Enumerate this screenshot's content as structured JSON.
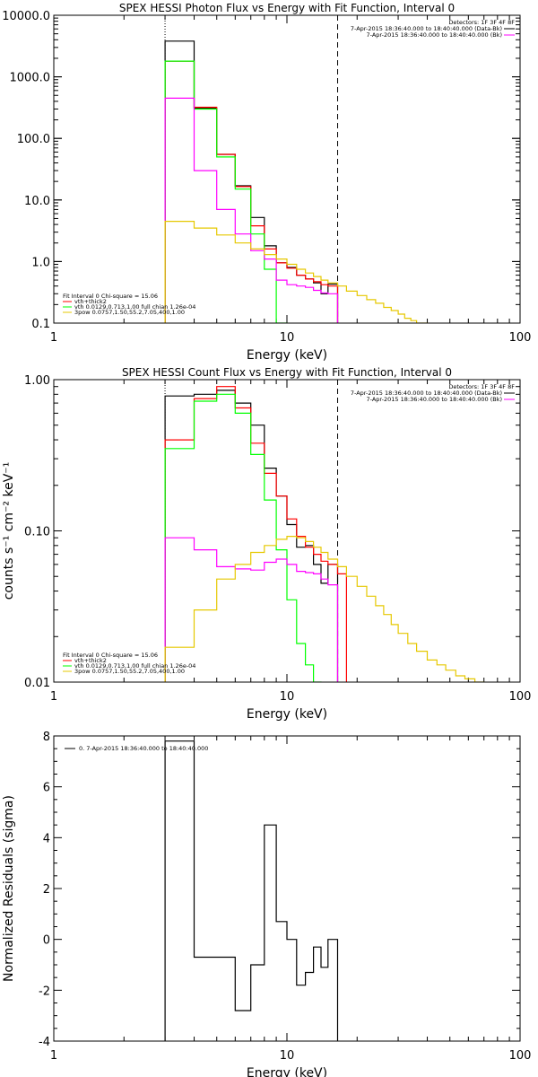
{
  "chart_data": [
    {
      "type": "line",
      "title": "SPEX HESSI Photon Flux vs Energy with Fit Function, Interval 0",
      "xlabel": "Energy (keV)",
      "ylabel": "",
      "xscale": "log",
      "yscale": "log",
      "xlim": [
        1,
        100
      ],
      "ylim": [
        0.1,
        10000
      ],
      "x_ticks": [
        "1",
        "10",
        "100"
      ],
      "y_ticks": [
        "0.1",
        "1.0",
        "10.0",
        "100.0",
        "1000.0",
        "10000.0"
      ],
      "vlines": [
        {
          "x": 3.0,
          "style": "dotted"
        },
        {
          "x": 16.5,
          "style": "dashed"
        }
      ],
      "header": {
        "detectors": "Detectors: 1F 3F 4F 8F",
        "line1": "7-Apr-2015 18:36:40.000 to 18:40:40.000 (Data-Bk)",
        "line2": "7-Apr-2015 18:36:40.000 to 18:40:40.000 (Bk)"
      },
      "fit_info": {
        "line1": "Fit Interval 0   Chi-square = 15.06",
        "line2": "vth+thick2",
        "line3": "vth 0.0129,0.713,1.00  full chian 1.26e-04",
        "line4": "3pow 0.0757,1.50,55.2,7.05,400,1.00"
      },
      "series": [
        {
          "name": "Data-Bk",
          "color": "#000000",
          "edges": [
            3.0,
            4.0,
            5.0,
            6.0,
            7.0,
            8.0,
            9.0,
            10.0,
            11.0,
            12.0,
            13.0,
            14.0,
            15.0,
            16.5
          ],
          "values": [
            3800,
            310,
            55,
            17,
            5.2,
            1.8,
            0.95,
            0.8,
            0.6,
            0.52,
            0.45,
            0.3,
            0.43
          ]
        },
        {
          "name": "vth+3pow",
          "color": "#ff0000",
          "edges": [
            3.0,
            4.0,
            5.0,
            6.0,
            7.0,
            8.0,
            9.0,
            10.0,
            11.0,
            12.0,
            13.0,
            14.0,
            15.0,
            16.5
          ],
          "values": [
            1800,
            320,
            55,
            16.5,
            3.8,
            1.6,
            0.95,
            0.78,
            0.6,
            0.52,
            0.47,
            0.42,
            0.4
          ]
        },
        {
          "name": "vth",
          "color": "#00ff00",
          "edges": [
            3.0,
            4.0,
            5.0,
            6.0,
            7.0,
            8.0,
            9.0,
            10.0
          ],
          "values": [
            1800,
            300,
            50,
            15,
            2.8,
            0.75,
            0.1
          ]
        },
        {
          "name": "Bk",
          "color": "#ff00ff",
          "edges": [
            3.0,
            4.0,
            5.0,
            6.0,
            7.0,
            8.0,
            9.0,
            10.0,
            11.0,
            12.0,
            13.0,
            14.0,
            15.0,
            16.5
          ],
          "values": [
            450,
            30,
            7.0,
            2.8,
            1.5,
            1.1,
            0.5,
            0.42,
            0.4,
            0.38,
            0.34,
            0.31,
            0.3
          ]
        },
        {
          "name": "3pow",
          "color": "#e6c800",
          "edges": [
            3.0,
            4.0,
            5.0,
            6.0,
            7.0,
            8.0,
            9.0,
            10.0,
            11.0,
            12.0,
            13.0,
            14.0,
            15.0,
            16.5,
            18.0,
            20.0,
            22.0,
            24.0,
            26.0,
            28.0,
            30.0,
            32.0,
            34.0,
            36.0,
            40.0,
            44.0
          ],
          "values": [
            4.5,
            3.5,
            2.7,
            2.0,
            1.6,
            1.3,
            1.1,
            0.9,
            0.75,
            0.65,
            0.57,
            0.5,
            0.45,
            0.4,
            0.33,
            0.28,
            0.24,
            0.21,
            0.18,
            0.16,
            0.14,
            0.12,
            0.11,
            0.1,
            0.09
          ]
        }
      ]
    },
    {
      "type": "line",
      "title": "SPEX HESSI Count Flux vs Energy with Fit Function, Interval 0",
      "xlabel": "Energy (keV)",
      "ylabel": "counts s⁻¹ cm⁻² keV⁻¹",
      "xscale": "log",
      "yscale": "log",
      "xlim": [
        1,
        100
      ],
      "ylim": [
        0.01,
        1.0
      ],
      "x_ticks": [
        "1",
        "10",
        "100"
      ],
      "y_ticks": [
        "0.01",
        "0.10",
        "1.00"
      ],
      "vlines": [
        {
          "x": 3.0,
          "style": "dotted"
        },
        {
          "x": 16.5,
          "style": "dashed"
        }
      ],
      "header": {
        "detectors": "Detectors: 1F 3F 4F 8F",
        "line1": "7-Apr-2015 18:36:40.000 to 18:40:40.000 (Data-Bk)",
        "line2": "7-Apr-2015 18:36:40.000 to 18:40:40.000 (Bk)"
      },
      "fit_info": {
        "line1": "Fit Interval 0   Chi-square = 15.06",
        "line2": "vth+thick2",
        "line3": "vth 0.0129,0.713,1.00  full chian 1.26e-04",
        "line4": "3pow 0.0757,1.50,55.2,7.05,400,1.00"
      },
      "series": [
        {
          "name": "Data-Bk",
          "color": "#000000",
          "edges": [
            3.0,
            4.0,
            5.0,
            6.0,
            7.0,
            8.0,
            9.0,
            10.0,
            11.0,
            12.0,
            13.0,
            14.0,
            15.0,
            16.5
          ],
          "values": [
            0.78,
            0.8,
            0.85,
            0.7,
            0.5,
            0.26,
            0.17,
            0.11,
            0.078,
            0.08,
            0.06,
            0.045,
            0.06
          ]
        },
        {
          "name": "vth+3pow",
          "color": "#ff0000",
          "edges": [
            3.0,
            4.0,
            5.0,
            6.0,
            7.0,
            8.0,
            9.0,
            10.0,
            11.0,
            12.0,
            13.0,
            14.0,
            15.0,
            16.5,
            18.0
          ],
          "values": [
            0.4,
            0.75,
            0.9,
            0.65,
            0.38,
            0.24,
            0.17,
            0.12,
            0.092,
            0.078,
            0.07,
            0.063,
            0.06,
            0.052
          ]
        },
        {
          "name": "vth",
          "color": "#00ff00",
          "edges": [
            3.0,
            4.0,
            5.0,
            6.0,
            7.0,
            8.0,
            9.0,
            10.0,
            11.0,
            12.0,
            13.0,
            14.0
          ],
          "values": [
            0.35,
            0.72,
            0.8,
            0.6,
            0.32,
            0.16,
            0.075,
            0.035,
            0.018,
            0.013,
            0.01
          ]
        },
        {
          "name": "Bk",
          "color": "#ff00ff",
          "edges": [
            3.0,
            4.0,
            5.0,
            6.0,
            7.0,
            8.0,
            9.0,
            10.0,
            11.0,
            12.0,
            13.0,
            14.0,
            15.0,
            16.5
          ],
          "values": [
            0.09,
            0.075,
            0.058,
            0.056,
            0.055,
            0.062,
            0.065,
            0.06,
            0.054,
            0.053,
            0.052,
            0.048,
            0.044
          ]
        },
        {
          "name": "3pow",
          "color": "#e6c800",
          "edges": [
            3.0,
            4.0,
            5.0,
            6.0,
            7.0,
            8.0,
            9.0,
            10.0,
            11.0,
            12.0,
            13.0,
            14.0,
            15.0,
            16.5,
            18.0,
            20.0,
            22.0,
            24.0,
            26.0,
            28.0,
            30.0,
            33.0,
            36.0,
            40.0,
            44.0,
            48.0,
            53.0,
            58.0,
            64.0,
            70.0
          ],
          "values": [
            0.017,
            0.03,
            0.048,
            0.06,
            0.072,
            0.08,
            0.088,
            0.092,
            0.09,
            0.085,
            0.078,
            0.072,
            0.065,
            0.058,
            0.05,
            0.043,
            0.037,
            0.032,
            0.028,
            0.024,
            0.021,
            0.018,
            0.016,
            0.014,
            0.013,
            0.012,
            0.011,
            0.0105,
            0.01
          ]
        }
      ]
    },
    {
      "type": "line",
      "title": "",
      "xlabel": "Energy (keV)",
      "ylabel": "Normalized Residuals (sigma)",
      "xscale": "log",
      "yscale": "linear",
      "xlim": [
        1,
        100
      ],
      "ylim": [
        -4,
        8
      ],
      "x_ticks": [
        "1",
        "10",
        "100"
      ],
      "y_ticks": [
        "-4",
        "-2",
        "0",
        "2",
        "4",
        "6",
        "8"
      ],
      "legend": "0.  7-Apr-2015 18:36:40.000 to 18:40:40.000",
      "series": [
        {
          "name": "0.",
          "color": "#000000",
          "edges": [
            3.0,
            4.0,
            5.0,
            6.0,
            7.0,
            8.0,
            9.0,
            10.0,
            11.0,
            12.0,
            13.0,
            14.0,
            15.0,
            16.5
          ],
          "values": [
            7.8,
            -0.7,
            -0.7,
            -2.8,
            -1.0,
            4.5,
            0.7,
            0.0,
            -1.8,
            -1.3,
            -0.3,
            -1.1,
            0.0
          ]
        }
      ]
    }
  ]
}
